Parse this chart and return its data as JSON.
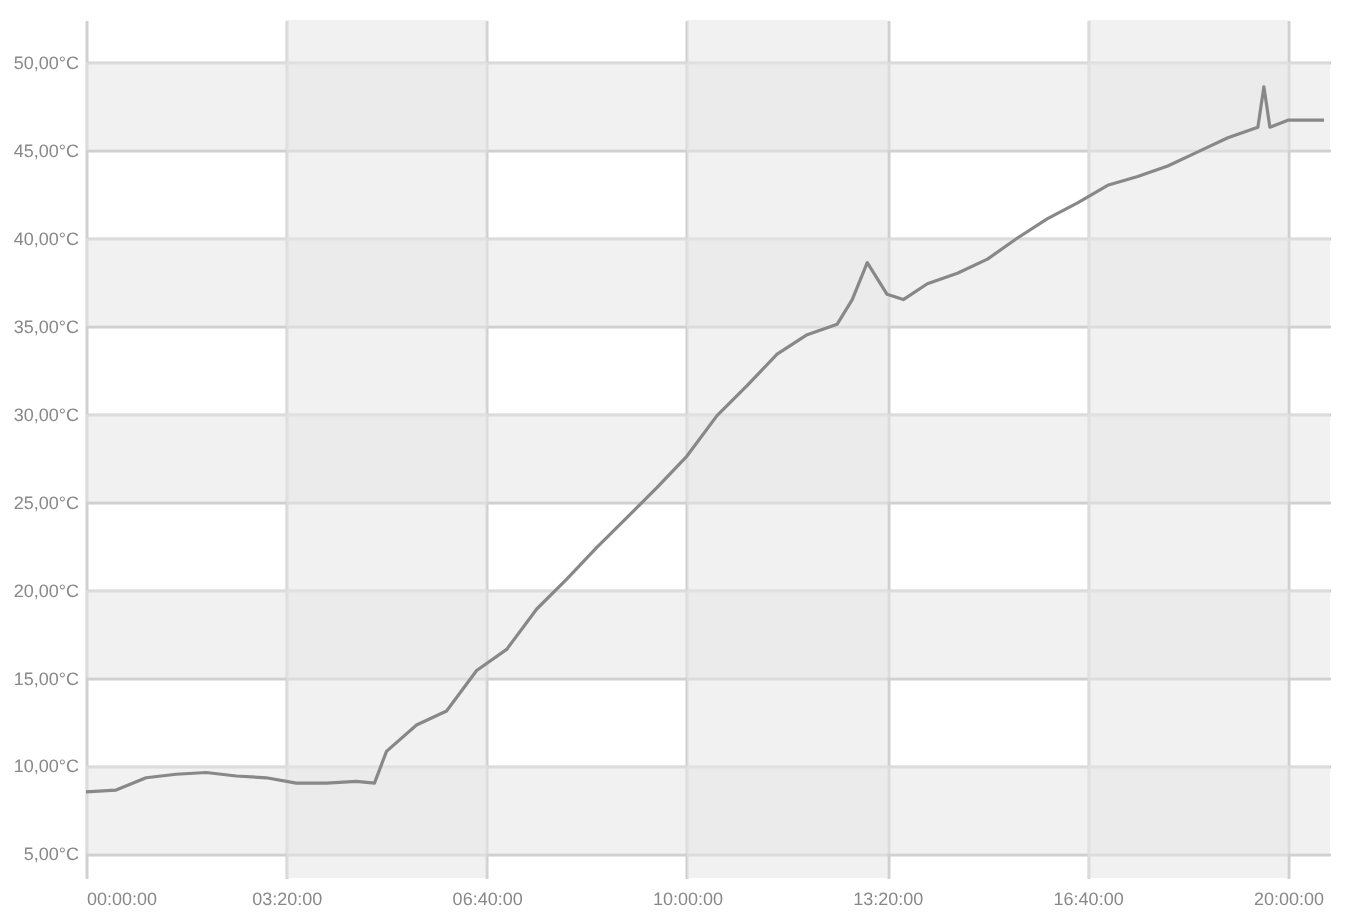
{
  "chart_data": {
    "type": "line",
    "x": [
      0,
      0.5,
      1,
      1.5,
      2,
      2.5,
      3,
      3.5,
      4,
      4.5,
      4.8,
      5,
      5.5,
      6,
      6.5,
      7,
      7.5,
      8,
      8.5,
      9,
      9.5,
      10,
      10.5,
      11,
      11.5,
      12,
      12.5,
      12.75,
      13,
      13.33,
      13.6,
      14,
      14.5,
      15,
      15.5,
      16,
      16.5,
      17,
      17.5,
      18,
      18.5,
      19,
      19.5,
      19.6,
      19.7,
      20,
      20.6
    ],
    "series": [
      {
        "color": "#888888",
        "values": [
          8.5,
          8.6,
          9.3,
          9.5,
          9.6,
          9.4,
          9.3,
          9.0,
          9.0,
          9.1,
          9.0,
          10.8,
          12.3,
          13.1,
          15.4,
          16.6,
          18.9,
          20.6,
          22.4,
          24.1,
          25.8,
          27.6,
          29.9,
          31.6,
          33.4,
          34.5,
          35.1,
          36.5,
          38.6,
          36.8,
          36.5,
          37.4,
          38.0,
          38.8,
          40.0,
          41.1,
          42.0,
          43.0,
          43.5,
          44.1,
          44.9,
          45.7,
          46.3,
          48.6,
          46.3,
          46.7,
          46.7
        ]
      }
    ],
    "xlim": [
      0,
      20.7
    ],
    "xticks": [
      {
        "value": 0,
        "label": "00:00:00"
      },
      {
        "value": 3.3333,
        "label": "03:20:00"
      },
      {
        "value": 6.6667,
        "label": "06:40:00"
      },
      {
        "value": 10,
        "label": "10:00:00"
      },
      {
        "value": 13.3333,
        "label": "13:20:00"
      },
      {
        "value": 16.6667,
        "label": "16:40:00"
      },
      {
        "value": 20,
        "label": "20:00:00"
      }
    ],
    "ylim": [
      3.6,
      52.4
    ],
    "yticks": [
      {
        "value": 5,
        "label": "5,00°C"
      },
      {
        "value": 10,
        "label": "10,00°C"
      },
      {
        "value": 15,
        "label": "15,00°C"
      },
      {
        "value": 20,
        "label": "20,00°C"
      },
      {
        "value": 25,
        "label": "25,00°C"
      },
      {
        "value": 30,
        "label": "30,00°C"
      },
      {
        "value": 35,
        "label": "35,00°C"
      },
      {
        "value": 40,
        "label": "40,00°C"
      },
      {
        "value": 45,
        "label": "45,00°C"
      },
      {
        "value": 50,
        "label": "50,00°C"
      }
    ],
    "bands": [
      {
        "axis": "x",
        "from": 3.3333,
        "to": 6.6667,
        "color": "#e6e6e6"
      },
      {
        "axis": "x",
        "from": 10,
        "to": 13.3333,
        "color": "#e6e6e6"
      },
      {
        "axis": "x",
        "from": 16.6667,
        "to": 20,
        "color": "#e6e6e6"
      },
      {
        "axis": "y",
        "from": 5,
        "to": 10,
        "color": "#e6e6e6"
      },
      {
        "axis": "y",
        "from": 15,
        "to": 20,
        "color": "#e6e6e6"
      },
      {
        "axis": "y",
        "from": 25,
        "to": 30,
        "color": "#e6e6e6"
      },
      {
        "axis": "y",
        "from": 35,
        "to": 40,
        "color": "#e6e6e6"
      },
      {
        "axis": "y",
        "from": 45,
        "to": 50,
        "color": "#e6e6e6"
      }
    ],
    "grid": true,
    "line_style": "solid"
  }
}
